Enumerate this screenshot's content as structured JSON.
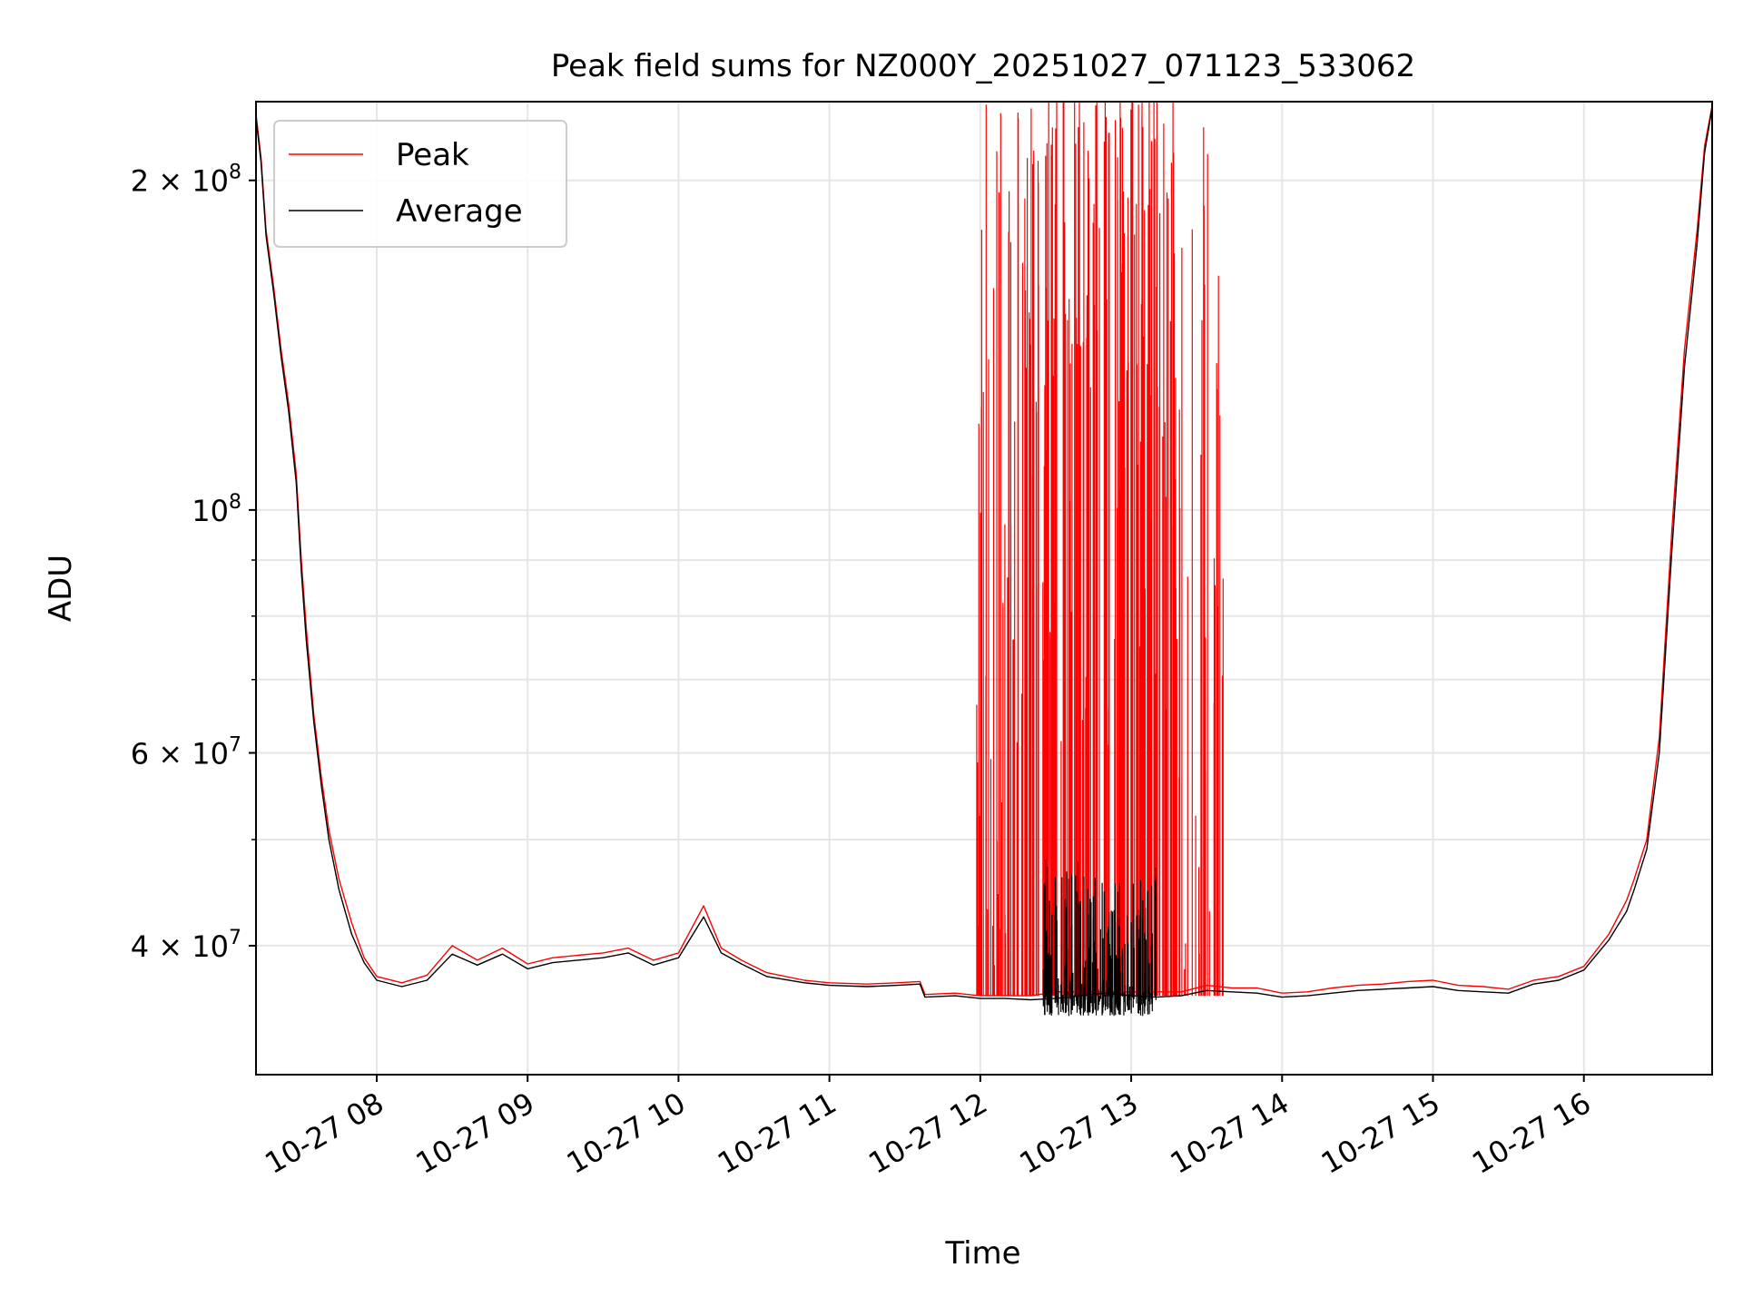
{
  "chart_data": {
    "type": "line",
    "title": "Peak field sums for NZ000Y_20251027_071123_533062",
    "xlabel": "Time",
    "ylabel": "ADU",
    "yscale": "log",
    "ylim": [
      30500000,
      236000000
    ],
    "xlim": [
      "2025-10-27 07:12",
      "2025-10-27 16:51"
    ],
    "grid": true,
    "legend_position": "upper-left",
    "x_ticks": [
      {
        "value": "2025-10-27 08:00",
        "label": "10-27 08"
      },
      {
        "value": "2025-10-27 09:00",
        "label": "10-27 09"
      },
      {
        "value": "2025-10-27 10:00",
        "label": "10-27 10"
      },
      {
        "value": "2025-10-27 11:00",
        "label": "10-27 11"
      },
      {
        "value": "2025-10-27 12:00",
        "label": "10-27 12"
      },
      {
        "value": "2025-10-27 13:00",
        "label": "10-27 13"
      },
      {
        "value": "2025-10-27 14:00",
        "label": "10-27 14"
      },
      {
        "value": "2025-10-27 15:00",
        "label": "10-27 15"
      },
      {
        "value": "2025-10-27 16:00",
        "label": "10-27 16"
      }
    ],
    "y_ticks": [
      {
        "value": 40000000,
        "mantissa": "4",
        "exponent": "7"
      },
      {
        "value": 60000000,
        "mantissa": "6",
        "exponent": "7"
      },
      {
        "value": 100000000,
        "mantissa": "",
        "exponent": "8"
      },
      {
        "value": 200000000,
        "mantissa": "2",
        "exponent": "8"
      }
    ],
    "y_minor_ticks": [
      30000000,
      50000000,
      70000000,
      80000000,
      90000000
    ],
    "times": [
      "2025-10-27 07:12",
      "2025-10-27 07:14",
      "2025-10-27 07:16",
      "2025-10-27 07:19",
      "2025-10-27 07:22",
      "2025-10-27 07:25",
      "2025-10-27 07:28",
      "2025-10-27 07:30",
      "2025-10-27 07:32",
      "2025-10-27 07:35",
      "2025-10-27 07:38",
      "2025-10-27 07:41",
      "2025-10-27 07:45",
      "2025-10-27 07:50",
      "2025-10-27 07:55",
      "2025-10-27 08:00",
      "2025-10-27 08:10",
      "2025-10-27 08:20",
      "2025-10-27 08:30",
      "2025-10-27 08:40",
      "2025-10-27 08:50",
      "2025-10-27 09:00",
      "2025-10-27 09:10",
      "2025-10-27 09:20",
      "2025-10-27 09:30",
      "2025-10-27 09:40",
      "2025-10-27 09:50",
      "2025-10-27 10:00",
      "2025-10-27 10:10",
      "2025-10-27 10:17",
      "2025-10-27 10:25",
      "2025-10-27 10:35",
      "2025-10-27 10:50",
      "2025-10-27 11:00",
      "2025-10-27 11:15",
      "2025-10-27 11:27",
      "2025-10-27 11:36",
      "2025-10-27 11:38",
      "2025-10-27 11:50",
      "2025-10-27 12:00",
      "2025-10-27 12:10",
      "2025-10-27 12:20",
      "2025-10-27 12:30",
      "2025-10-27 12:40",
      "2025-10-27 12:50",
      "2025-10-27 13:00",
      "2025-10-27 13:10",
      "2025-10-27 13:20",
      "2025-10-27 13:30",
      "2025-10-27 13:40",
      "2025-10-27 13:50",
      "2025-10-27 14:00",
      "2025-10-27 14:10",
      "2025-10-27 14:20",
      "2025-10-27 14:30",
      "2025-10-27 14:40",
      "2025-10-27 14:50",
      "2025-10-27 15:00",
      "2025-10-27 15:10",
      "2025-10-27 15:20",
      "2025-10-27 15:30",
      "2025-10-27 15:40",
      "2025-10-27 15:50",
      "2025-10-27 16:00",
      "2025-10-27 16:10",
      "2025-10-27 16:17",
      "2025-10-27 16:20",
      "2025-10-27 16:25",
      "2025-10-27 16:30",
      "2025-10-27 16:35",
      "2025-10-27 16:40",
      "2025-10-27 16:45",
      "2025-10-27 16:48",
      "2025-10-27 16:51"
    ],
    "series": [
      {
        "name": "Peak",
        "color": "#ff0000",
        "values": [
          230000000,
          210000000,
          180000000,
          160000000,
          140000000,
          125000000,
          108000000,
          90000000,
          78000000,
          65000000,
          57000000,
          51000000,
          46000000,
          42000000,
          39000000,
          37500000,
          37000000,
          37600000,
          40000000,
          38800000,
          39800000,
          38500000,
          39000000,
          39200000,
          39400000,
          39800000,
          38800000,
          39400000,
          43500000,
          39800000,
          38800000,
          37800000,
          37200000,
          37000000,
          36900000,
          37000000,
          37100000,
          36100000,
          36200000,
          36000000,
          36000000,
          36000000,
          36300000,
          36300000,
          36300000,
          36300000,
          36300000,
          36300000,
          36800000,
          36600000,
          36600000,
          36200000,
          36300000,
          36600000,
          36800000,
          36900000,
          37100000,
          37200000,
          36800000,
          36700000,
          36500000,
          37200000,
          37500000,
          38300000,
          41000000,
          44000000,
          46000000,
          50000000,
          62000000,
          96000000,
          140000000,
          180000000,
          215000000,
          234000000
        ]
      },
      {
        "name": "Average",
        "color": "#000000",
        "values": [
          228000000,
          208000000,
          178000000,
          158000000,
          138000000,
          123000000,
          106000000,
          88000000,
          76000000,
          64000000,
          56000000,
          50000000,
          45000000,
          41000000,
          38600000,
          37200000,
          36700000,
          37200000,
          39300000,
          38400000,
          39300000,
          38100000,
          38600000,
          38800000,
          39000000,
          39400000,
          38400000,
          39000000,
          42500000,
          39400000,
          38500000,
          37500000,
          37000000,
          36800000,
          36700000,
          36800000,
          36900000,
          35900000,
          36000000,
          35800000,
          35800000,
          35700000,
          35800000,
          36000000,
          36200000,
          36000000,
          35900000,
          36000000,
          36400000,
          36300000,
          36200000,
          35900000,
          36000000,
          36200000,
          36400000,
          36500000,
          36600000,
          36700000,
          36400000,
          36300000,
          36200000,
          36900000,
          37200000,
          38000000,
          40500000,
          43000000,
          45000000,
          49000000,
          60000000,
          92000000,
          135000000,
          175000000,
          212000000,
          233000000
        ]
      }
    ]
  }
}
